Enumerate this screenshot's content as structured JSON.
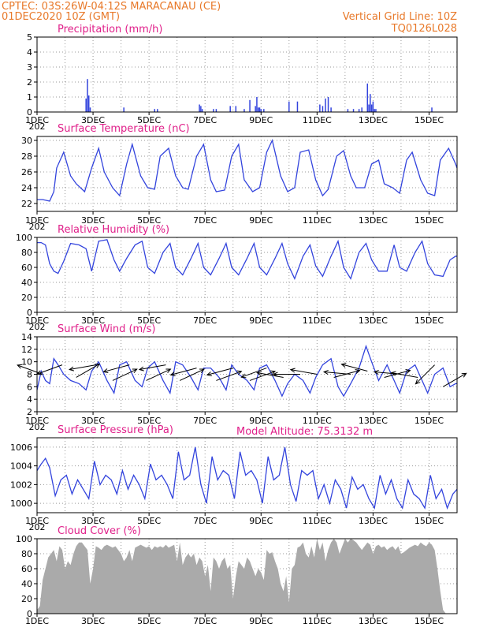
{
  "header": {
    "line1": "CPTEC:   03S:26W-04:12S   MARACANAU (CE)",
    "line2": "01DEC2020 10Z (GMT)",
    "right1": "Vertical Grid Line: 10Z",
    "right2": "TQ0126L028"
  },
  "x_axis": {
    "labels": [
      "1DEC",
      "3DEC",
      "5DEC",
      "7DEC",
      "9DEC",
      "11DEC",
      "13DEC",
      "15DEC"
    ],
    "year_fragment": "202"
  },
  "model_altitude": "Model Altitude: 75.3132 m",
  "colors": {
    "series": "#3344dd",
    "cloud": "#aaaaaa",
    "header": "#e8792a",
    "title": "#e0208a",
    "grid": "#999999"
  },
  "chart_data": [
    {
      "type": "bar",
      "title": "Precipitation (mm/h)",
      "x_unit": "day of month (Dec 2020)",
      "ylim": [
        0,
        5
      ],
      "yticks": [
        "0",
        "1",
        "2",
        "3",
        "4",
        "5"
      ],
      "xlim": [
        1.0,
        16.0
      ],
      "bar_width": 0.04,
      "x": [
        2.75,
        2.8,
        2.85,
        2.9,
        4.1,
        5.2,
        5.3,
        6.8,
        6.85,
        6.9,
        7.3,
        7.4,
        7.9,
        8.1,
        8.4,
        8.6,
        8.8,
        8.85,
        8.9,
        8.95,
        9.0,
        9.1,
        10.0,
        10.3,
        11.1,
        11.2,
        11.3,
        11.4,
        11.5,
        12.1,
        12.3,
        12.5,
        12.6,
        12.8,
        12.85,
        12.9,
        12.95,
        13.0,
        13.05,
        13.1,
        15.1
      ],
      "values": [
        0.9,
        2.2,
        1.1,
        0.3,
        0.3,
        0.2,
        0.2,
        0.5,
        0.4,
        0.2,
        0.2,
        0.2,
        0.4,
        0.4,
        0.2,
        0.8,
        0.4,
        1.0,
        0.3,
        0.3,
        0.2,
        0.2,
        0.7,
        0.7,
        0.5,
        0.4,
        0.9,
        1.0,
        0.3,
        0.2,
        0.2,
        0.2,
        0.3,
        1.9,
        0.5,
        1.2,
        0.5,
        0.7,
        0.2,
        0.2,
        0.3
      ]
    },
    {
      "type": "line",
      "title": "Surface Temperature (nC)",
      "x_unit": "day of month (Dec 2020)",
      "ylim": [
        21,
        30.5
      ],
      "yticks": [
        "22",
        "24",
        "26",
        "28",
        "30"
      ],
      "xlim": [
        1.0,
        16.0
      ],
      "x": [
        1.0,
        1.2,
        1.45,
        1.6,
        1.7,
        1.95,
        2.2,
        2.4,
        2.7,
        2.95,
        3.2,
        3.4,
        3.7,
        3.95,
        4.2,
        4.4,
        4.7,
        4.95,
        5.2,
        5.4,
        5.7,
        5.95,
        6.2,
        6.4,
        6.7,
        6.95,
        7.2,
        7.4,
        7.7,
        7.95,
        8.2,
        8.4,
        8.7,
        8.95,
        9.2,
        9.4,
        9.7,
        9.95,
        10.2,
        10.4,
        10.7,
        10.95,
        11.2,
        11.4,
        11.7,
        11.95,
        12.2,
        12.4,
        12.7,
        12.95,
        13.2,
        13.4,
        13.7,
        13.95,
        14.2,
        14.4,
        14.7,
        14.95,
        15.2,
        15.4,
        15.7,
        15.95,
        16.0
      ],
      "values": [
        22.5,
        22.5,
        22.3,
        23.5,
        26.5,
        28.5,
        25.5,
        24.5,
        23.5,
        26.5,
        29.0,
        26.0,
        24.0,
        23.0,
        27.0,
        29.5,
        25.5,
        24.0,
        23.8,
        28.0,
        29.0,
        25.5,
        24.0,
        23.8,
        28.0,
        29.5,
        25.0,
        23.5,
        23.7,
        28.0,
        29.5,
        25.0,
        23.5,
        24.0,
        28.5,
        30.0,
        25.5,
        23.5,
        24.0,
        28.5,
        28.8,
        25.0,
        23.0,
        23.8,
        28.0,
        28.7,
        25.5,
        24.0,
        24.0,
        27.0,
        27.5,
        24.5,
        24.0,
        23.3,
        27.5,
        28.5,
        25.0,
        23.3,
        23.0,
        27.5,
        29.0,
        27.0,
        26.5
      ]
    },
    {
      "type": "line",
      "title": "Relative Humidity (%)",
      "x_unit": "day of month (Dec 2020)",
      "ylim": [
        0,
        100
      ],
      "yticks": [
        "0",
        "20",
        "40",
        "60",
        "80",
        "100"
      ],
      "xlim": [
        1.0,
        16.0
      ],
      "x": [
        1.0,
        1.15,
        1.3,
        1.45,
        1.6,
        1.75,
        1.95,
        2.2,
        2.5,
        2.75,
        2.95,
        3.2,
        3.5,
        3.75,
        3.95,
        4.2,
        4.5,
        4.75,
        4.95,
        5.2,
        5.5,
        5.75,
        5.95,
        6.2,
        6.5,
        6.75,
        6.95,
        7.2,
        7.5,
        7.75,
        7.95,
        8.2,
        8.5,
        8.75,
        8.95,
        9.2,
        9.5,
        9.75,
        9.95,
        10.2,
        10.5,
        10.75,
        10.95,
        11.2,
        11.5,
        11.75,
        11.95,
        12.2,
        12.5,
        12.75,
        12.95,
        13.2,
        13.5,
        13.75,
        13.95,
        14.2,
        14.5,
        14.75,
        14.95,
        15.2,
        15.5,
        15.75,
        15.95,
        16.0
      ],
      "values": [
        93,
        93,
        90,
        65,
        55,
        52,
        68,
        92,
        90,
        85,
        55,
        95,
        97,
        70,
        55,
        72,
        90,
        95,
        60,
        52,
        80,
        92,
        60,
        50,
        72,
        92,
        60,
        50,
        72,
        92,
        60,
        50,
        72,
        92,
        60,
        50,
        72,
        92,
        65,
        45,
        75,
        90,
        62,
        48,
        75,
        95,
        60,
        45,
        80,
        92,
        70,
        55,
        55,
        90,
        60,
        55,
        80,
        95,
        65,
        50,
        48,
        70,
        75,
        75
      ]
    },
    {
      "type": "line",
      "title": "Surface Wind (m/s)",
      "x_unit": "day of month (Dec 2020)",
      "ylim": [
        2,
        14
      ],
      "yticks": [
        "2",
        "4",
        "6",
        "8",
        "10",
        "12",
        "14"
      ],
      "xlim": [
        1.0,
        16.0
      ],
      "x": [
        1.0,
        1.15,
        1.3,
        1.45,
        1.6,
        1.75,
        1.95,
        2.2,
        2.5,
        2.75,
        2.95,
        3.2,
        3.5,
        3.75,
        3.95,
        4.2,
        4.5,
        4.75,
        4.95,
        5.2,
        5.5,
        5.75,
        5.95,
        6.2,
        6.5,
        6.75,
        6.95,
        7.2,
        7.5,
        7.75,
        7.95,
        8.2,
        8.5,
        8.75,
        8.95,
        9.2,
        9.5,
        9.75,
        9.95,
        10.2,
        10.5,
        10.75,
        10.95,
        11.2,
        11.5,
        11.75,
        11.95,
        12.2,
        12.5,
        12.75,
        12.95,
        13.2,
        13.5,
        13.75,
        13.95,
        14.2,
        14.5,
        14.75,
        14.95,
        15.2,
        15.5,
        15.75,
        15.95,
        16.0
      ],
      "values": [
        5.5,
        8.5,
        7.0,
        6.5,
        10.5,
        9.5,
        8.0,
        7.0,
        6.5,
        5.5,
        8.5,
        10.0,
        7.0,
        5.0,
        9.5,
        10.0,
        7.0,
        6.0,
        9.0,
        10.0,
        7.0,
        5.0,
        10.0,
        9.5,
        7.5,
        5.5,
        9.0,
        9.0,
        7.5,
        5.5,
        9.5,
        8.0,
        7.0,
        5.5,
        9.0,
        9.5,
        7.0,
        4.5,
        6.5,
        8.0,
        7.0,
        5.0,
        7.5,
        9.5,
        10.5,
        6.0,
        4.5,
        6.5,
        9.0,
        12.5,
        10.0,
        7.0,
        9.5,
        7.0,
        5.0,
        8.5,
        9.5,
        7.0,
        5.0,
        8.0,
        9.0,
        6.0,
        6.5,
        6.5
      ],
      "arrows": [
        {
          "x": 1.2,
          "y": 8.0,
          "angle_deg": 160
        },
        {
          "x": 1.9,
          "y": 9.5,
          "angle_deg": 200
        },
        {
          "x": 2.4,
          "y": 7.5,
          "angle_deg": 30
        },
        {
          "x": 3.1,
          "y": 9.5,
          "angle_deg": 190
        },
        {
          "x": 3.7,
          "y": 7.0,
          "angle_deg": 25
        },
        {
          "x": 4.3,
          "y": 9.5,
          "angle_deg": 195
        },
        {
          "x": 4.9,
          "y": 7.0,
          "angle_deg": 25
        },
        {
          "x": 5.6,
          "y": 9.5,
          "angle_deg": 190
        },
        {
          "x": 6.1,
          "y": 7.0,
          "angle_deg": 25
        },
        {
          "x": 6.7,
          "y": 9.0,
          "angle_deg": 195
        },
        {
          "x": 7.4,
          "y": 7.0,
          "angle_deg": 20
        },
        {
          "x": 8.0,
          "y": 9.0,
          "angle_deg": 195
        },
        {
          "x": 8.6,
          "y": 7.0,
          "angle_deg": 20
        },
        {
          "x": 9.2,
          "y": 9.0,
          "angle_deg": 200
        },
        {
          "x": 9.8,
          "y": 7.5,
          "angle_deg": 170
        },
        {
          "x": 10.4,
          "y": 8.0,
          "angle_deg": 180
        },
        {
          "x": 11.0,
          "y": 8.0,
          "angle_deg": 170
        },
        {
          "x": 11.6,
          "y": 7.5,
          "angle_deg": 15
        },
        {
          "x": 12.2,
          "y": 8.0,
          "angle_deg": 175
        },
        {
          "x": 12.8,
          "y": 8.5,
          "angle_deg": 165
        },
        {
          "x": 13.4,
          "y": 7.5,
          "angle_deg": 15
        },
        {
          "x": 14.0,
          "y": 8.0,
          "angle_deg": 175
        },
        {
          "x": 14.6,
          "y": 7.5,
          "angle_deg": 170
        },
        {
          "x": 15.2,
          "y": 9.5,
          "angle_deg": 225
        },
        {
          "x": 15.5,
          "y": 6.0,
          "angle_deg": 30
        }
      ]
    },
    {
      "type": "line",
      "title": "Surface Pressure (hPa)",
      "x_unit": "day of month (Dec 2020)",
      "ylim": [
        999.0,
        1007.0
      ],
      "yticks": [
        "1000",
        "1002",
        "1004",
        "1006"
      ],
      "xlim": [
        1.0,
        16.0
      ],
      "x": [
        1.0,
        1.15,
        1.3,
        1.45,
        1.65,
        1.85,
        2.05,
        2.25,
        2.45,
        2.65,
        2.85,
        3.05,
        3.25,
        3.45,
        3.65,
        3.85,
        4.05,
        4.25,
        4.45,
        4.65,
        4.85,
        5.05,
        5.25,
        5.45,
        5.65,
        5.85,
        6.05,
        6.25,
        6.45,
        6.65,
        6.85,
        7.05,
        7.25,
        7.45,
        7.65,
        7.85,
        8.05,
        8.25,
        8.45,
        8.65,
        8.85,
        9.05,
        9.25,
        9.45,
        9.65,
        9.85,
        10.05,
        10.25,
        10.45,
        10.65,
        10.85,
        11.05,
        11.25,
        11.45,
        11.65,
        11.85,
        12.05,
        12.25,
        12.45,
        12.65,
        12.85,
        13.05,
        13.25,
        13.45,
        13.65,
        13.85,
        14.05,
        14.25,
        14.45,
        14.65,
        14.85,
        15.05,
        15.25,
        15.45,
        15.65,
        15.85,
        16.0
      ],
      "values": [
        1003.5,
        1004.2,
        1004.8,
        1003.8,
        1000.8,
        1002.5,
        1003.0,
        1001.0,
        1002.5,
        1001.5,
        1000.5,
        1004.5,
        1002.0,
        1003.0,
        1002.5,
        1001.0,
        1003.5,
        1001.5,
        1003.0,
        1002.0,
        1000.5,
        1004.2,
        1002.5,
        1003.0,
        1002.0,
        1000.5,
        1005.5,
        1002.5,
        1003.0,
        1006.0,
        1002.0,
        1000.0,
        1005.0,
        1002.5,
        1003.5,
        1003.0,
        1000.5,
        1005.5,
        1003.0,
        1003.5,
        1002.5,
        1000.0,
        1005.0,
        1002.5,
        1003.0,
        1006.0,
        1002.0,
        1000.2,
        1003.5,
        1003.0,
        1003.5,
        1000.5,
        1002.0,
        1000.0,
        1002.5,
        1001.5,
        999.5,
        1002.8,
        1001.5,
        1002.0,
        1000.5,
        999.5,
        1003.0,
        1001.0,
        1002.5,
        1000.5,
        999.5,
        1002.5,
        1001.0,
        1000.5,
        999.5,
        1003.0,
        1000.5,
        1001.5,
        999.5,
        1001.0,
        1001.5
      ]
    },
    {
      "type": "area",
      "title": "Cloud Cover (%)",
      "x_unit": "day of month (Dec 2020)",
      "ylim": [
        0,
        100
      ],
      "yticks": [
        "0",
        "20",
        "40",
        "60",
        "80",
        "100"
      ],
      "xlim": [
        1.0,
        16.0
      ],
      "x": [
        1.0,
        1.1,
        1.2,
        1.3,
        1.4,
        1.5,
        1.6,
        1.7,
        1.8,
        1.9,
        2.0,
        2.1,
        2.2,
        2.3,
        2.4,
        2.5,
        2.6,
        2.7,
        2.8,
        2.9,
        3.0,
        3.1,
        3.2,
        3.3,
        3.4,
        3.5,
        3.6,
        3.7,
        3.8,
        3.9,
        4.0,
        4.1,
        4.2,
        4.3,
        4.4,
        4.5,
        4.6,
        4.7,
        4.8,
        4.9,
        5.0,
        5.1,
        5.2,
        5.3,
        5.4,
        5.5,
        5.6,
        5.7,
        5.8,
        5.9,
        6.0,
        6.1,
        6.2,
        6.3,
        6.4,
        6.5,
        6.6,
        6.7,
        6.8,
        6.9,
        7.0,
        7.1,
        7.2,
        7.3,
        7.4,
        7.5,
        7.6,
        7.7,
        7.8,
        7.9,
        8.0,
        8.1,
        8.2,
        8.3,
        8.4,
        8.5,
        8.6,
        8.7,
        8.8,
        8.9,
        9.0,
        9.1,
        9.2,
        9.3,
        9.4,
        9.5,
        9.6,
        9.7,
        9.8,
        9.9,
        10.0,
        10.1,
        10.2,
        10.3,
        10.4,
        10.5,
        10.6,
        10.7,
        10.8,
        10.9,
        11.0,
        11.1,
        11.2,
        11.3,
        11.4,
        11.5,
        11.6,
        11.7,
        11.8,
        11.9,
        12.0,
        12.1,
        12.2,
        12.3,
        12.4,
        12.5,
        12.6,
        12.7,
        12.8,
        12.9,
        13.0,
        13.1,
        13.2,
        13.3,
        13.4,
        13.5,
        13.6,
        13.7,
        13.8,
        13.9,
        14.0,
        14.1,
        14.2,
        14.3,
        14.4,
        14.5,
        14.6,
        14.7,
        14.8,
        14.9,
        15.0,
        15.1,
        15.2,
        15.3,
        15.4,
        15.5,
        15.6,
        15.7,
        15.8,
        15.9,
        16.0
      ],
      "values": [
        5,
        10,
        45,
        60,
        75,
        80,
        85,
        70,
        90,
        85,
        60,
        70,
        65,
        80,
        90,
        95,
        95,
        90,
        85,
        40,
        60,
        90,
        88,
        85,
        90,
        92,
        90,
        88,
        90,
        85,
        80,
        70,
        75,
        85,
        70,
        88,
        90,
        92,
        90,
        88,
        90,
        85,
        90,
        88,
        90,
        88,
        92,
        88,
        90,
        92,
        70,
        95,
        65,
        75,
        80,
        75,
        80,
        65,
        75,
        70,
        50,
        65,
        30,
        75,
        70,
        60,
        70,
        75,
        60,
        65,
        20,
        50,
        70,
        65,
        60,
        75,
        70,
        60,
        50,
        60,
        55,
        45,
        85,
        80,
        82,
        70,
        60,
        40,
        30,
        50,
        15,
        60,
        65,
        88,
        90,
        95,
        80,
        75,
        90,
        75,
        100,
        85,
        95,
        70,
        85,
        95,
        100,
        95,
        80,
        90,
        100,
        95,
        100,
        98,
        95,
        90,
        85,
        90,
        95,
        92,
        80,
        90,
        92,
        88,
        90,
        85,
        88,
        90,
        85,
        90,
        80,
        82,
        85,
        88,
        90,
        92,
        90,
        95,
        92,
        90,
        95,
        92,
        85,
        60,
        30,
        5,
        0,
        0,
        0,
        0,
        0
      ]
    }
  ]
}
